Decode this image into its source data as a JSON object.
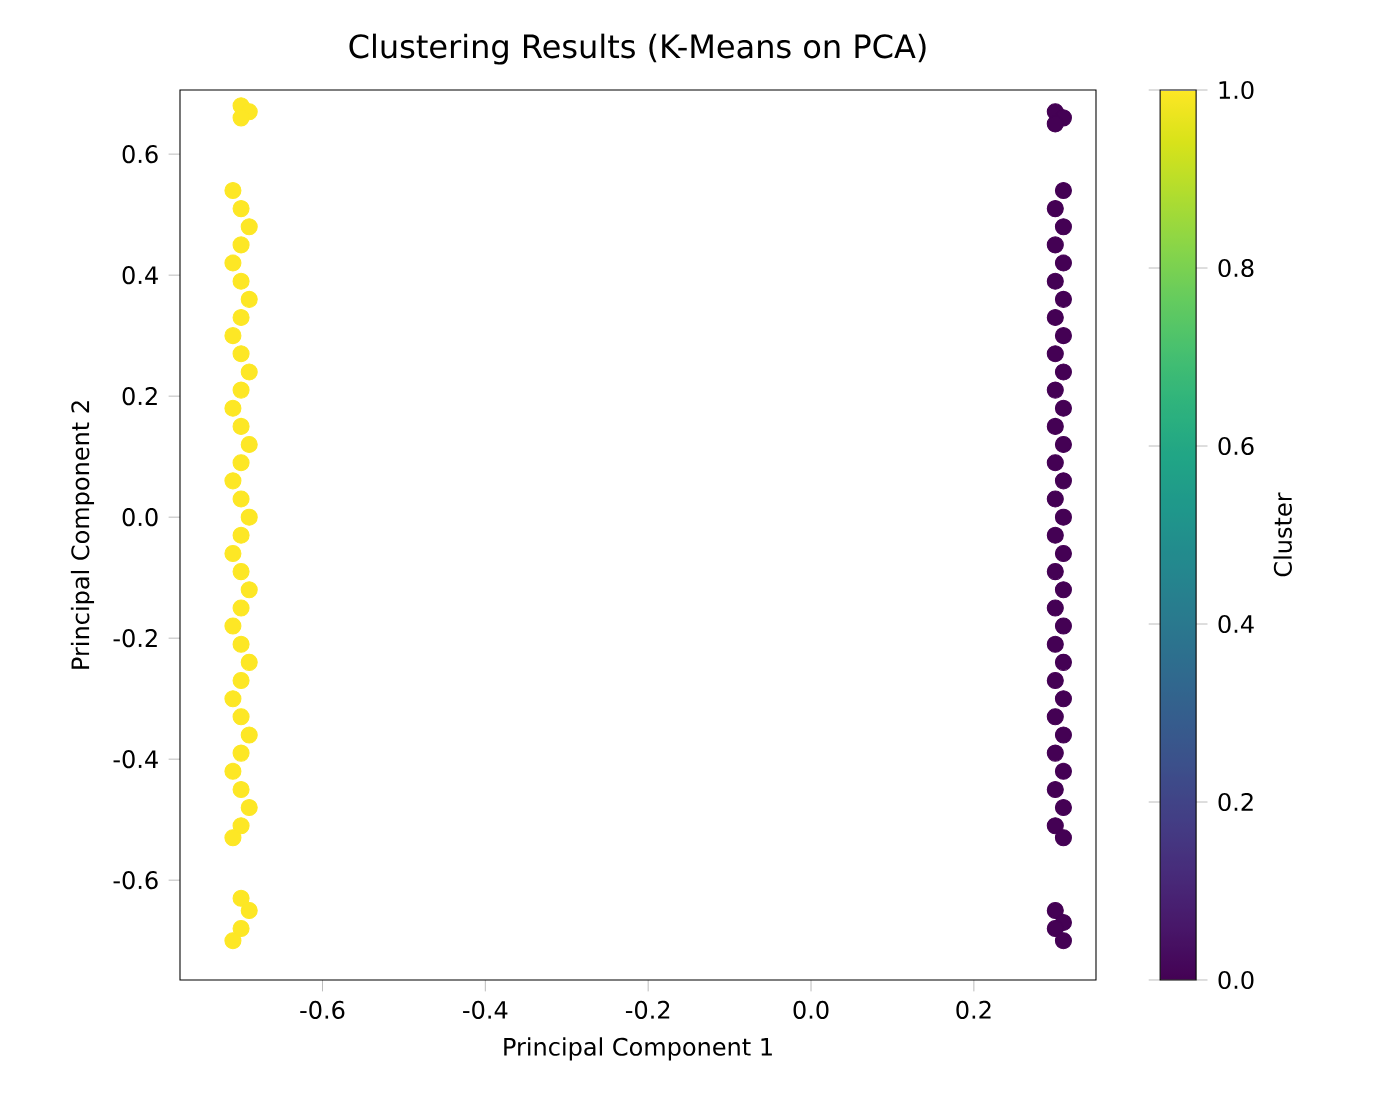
{
  "chart_data": {
    "type": "scatter",
    "title": "Clustering Results (K-Means on PCA)",
    "xlabel": "Principal Component 1",
    "ylabel": "Principal Component 2",
    "clabel": "Cluster",
    "x": [
      -0.7,
      -0.69,
      -0.7,
      -0.71,
      -0.7,
      -0.69,
      -0.7,
      -0.71,
      -0.7,
      -0.69,
      -0.7,
      -0.71,
      -0.7,
      -0.69,
      -0.7,
      -0.71,
      -0.7,
      -0.69,
      -0.7,
      -0.71,
      -0.7,
      -0.69,
      -0.7,
      -0.71,
      -0.7,
      -0.69,
      -0.7,
      -0.71,
      -0.7,
      -0.69,
      -0.7,
      -0.71,
      -0.7,
      -0.69,
      -0.7,
      -0.71,
      -0.7,
      -0.69,
      -0.7,
      -0.71,
      -0.7,
      -0.69,
      -0.7,
      -0.71,
      0.3,
      0.31,
      0.3,
      0.31,
      0.3,
      0.31,
      0.3,
      0.31,
      0.3,
      0.31,
      0.3,
      0.31,
      0.3,
      0.31,
      0.3,
      0.31,
      0.3,
      0.31,
      0.3,
      0.31,
      0.3,
      0.31,
      0.3,
      0.31,
      0.3,
      0.31,
      0.3,
      0.31,
      0.3,
      0.31,
      0.3,
      0.31,
      0.3,
      0.31,
      0.3,
      0.31,
      0.3,
      0.31,
      0.3,
      0.31,
      0.3,
      0.31,
      0.3,
      0.31
    ],
    "values": [
      0.68,
      0.67,
      0.66,
      0.54,
      0.51,
      0.48,
      0.45,
      0.42,
      0.39,
      0.36,
      0.33,
      0.3,
      0.27,
      0.24,
      0.21,
      0.18,
      0.15,
      0.12,
      0.09,
      0.06,
      0.03,
      0.0,
      -0.03,
      -0.06,
      -0.09,
      -0.12,
      -0.15,
      -0.18,
      -0.21,
      -0.24,
      -0.27,
      -0.3,
      -0.33,
      -0.36,
      -0.39,
      -0.42,
      -0.45,
      -0.48,
      -0.51,
      -0.53,
      -0.63,
      -0.65,
      -0.68,
      -0.7,
      0.67,
      0.66,
      0.65,
      0.54,
      0.51,
      0.48,
      0.45,
      0.42,
      0.39,
      0.36,
      0.33,
      0.3,
      0.27,
      0.24,
      0.21,
      0.18,
      0.15,
      0.12,
      0.09,
      0.06,
      0.03,
      0.0,
      -0.03,
      -0.06,
      -0.09,
      -0.12,
      -0.15,
      -0.18,
      -0.21,
      -0.24,
      -0.27,
      -0.3,
      -0.33,
      -0.36,
      -0.39,
      -0.42,
      -0.45,
      -0.48,
      -0.51,
      -0.53,
      -0.65,
      -0.67,
      -0.68,
      -0.7
    ],
    "cvalues": [
      1,
      1,
      1,
      1,
      1,
      1,
      1,
      1,
      1,
      1,
      1,
      1,
      1,
      1,
      1,
      1,
      1,
      1,
      1,
      1,
      1,
      1,
      1,
      1,
      1,
      1,
      1,
      1,
      1,
      1,
      1,
      1,
      1,
      1,
      1,
      1,
      1,
      1,
      1,
      1,
      1,
      1,
      1,
      1,
      0,
      0,
      0,
      0,
      0,
      0,
      0,
      0,
      0,
      0,
      0,
      0,
      0,
      0,
      0,
      0,
      0,
      0,
      0,
      0,
      0,
      0,
      0,
      0,
      0,
      0,
      0,
      0,
      0,
      0,
      0,
      0,
      0,
      0,
      0,
      0,
      0,
      0,
      0,
      0,
      0,
      0,
      0,
      0
    ],
    "xlim": [
      -0.775,
      0.35
    ],
    "ylim": [
      -0.765,
      0.706
    ],
    "xticks": [
      -0.6,
      -0.4,
      -0.2,
      {
        "value": 0.0,
        "label": "0.0"
      },
      0.2
    ],
    "yticks": [
      -0.6,
      -0.4,
      -0.2,
      {
        "value": 0.0,
        "label": "0.0"
      },
      0.2,
      0.4,
      0.6
    ],
    "clim": [
      0.0,
      1.0
    ],
    "cticks": [
      {
        "value": 0.0,
        "label": "0.0"
      },
      0.2,
      0.4,
      0.6,
      0.8,
      {
        "value": 1.0,
        "label": "1.0"
      }
    ],
    "marker": "circle",
    "grid": false
  }
}
